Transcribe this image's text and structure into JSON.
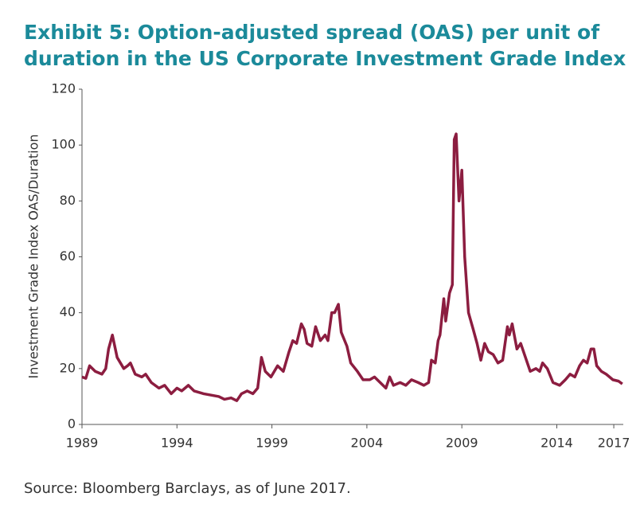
{
  "chart_data": {
    "type": "line",
    "title": [
      "Exhibit 5: Option-adjusted spread (OAS) per unit of",
      "duration in the US Corporate Investment Grade Index"
    ],
    "ylabel": "Investment Grade Index OAS/Duration",
    "source": "Source: Bloomberg Barclays, as of June 2017.",
    "xlim": [
      1989,
      2017.5
    ],
    "xticks": [
      1989,
      1994,
      1999,
      2004,
      2009,
      2014,
      2017
    ],
    "ylim": [
      0,
      120
    ],
    "yticks": [
      0,
      20,
      40,
      60,
      80,
      100,
      120
    ],
    "grid": false,
    "series": [
      {
        "name": "OAS/Duration",
        "color": "#8c1d40",
        "x": [
          1989.0,
          1989.2,
          1989.4,
          1989.7,
          1990.05,
          1990.25,
          1990.4,
          1990.6,
          1990.85,
          1991.2,
          1991.4,
          1991.55,
          1991.8,
          1992.15,
          1992.35,
          1992.65,
          1993.05,
          1993.35,
          1993.7,
          1994.0,
          1994.25,
          1994.6,
          1994.9,
          1995.4,
          1995.8,
          1996.2,
          1996.5,
          1996.85,
          1997.15,
          1997.4,
          1997.7,
          1998.0,
          1998.25,
          1998.45,
          1998.65,
          1998.95,
          1999.3,
          1999.6,
          1999.9,
          2000.1,
          2000.3,
          2000.55,
          2000.7,
          2000.85,
          2001.1,
          2001.3,
          2001.55,
          2001.8,
          2001.95,
          2002.15,
          2002.3,
          2002.5,
          2002.65,
          2002.95,
          2003.15,
          2003.5,
          2003.8,
          2004.15,
          2004.4,
          2004.7,
          2005.0,
          2005.2,
          2005.4,
          2005.75,
          2006.05,
          2006.35,
          2006.7,
          2007.0,
          2007.25,
          2007.4,
          2007.6,
          2007.75,
          2007.85,
          2008.05,
          2008.15,
          2008.35,
          2008.5,
          2008.6,
          2008.7,
          2008.85,
          2009.0,
          2009.15,
          2009.35,
          2009.6,
          2009.8,
          2010.0,
          2010.2,
          2010.4,
          2010.65,
          2010.9,
          2011.15,
          2011.4,
          2011.5,
          2011.65,
          2011.9,
          2012.1,
          2012.35,
          2012.6,
          2012.9,
          2013.1,
          2013.25,
          2013.5,
          2013.8,
          2014.15,
          2014.45,
          2014.7,
          2014.95,
          2015.2,
          2015.4,
          2015.6,
          2015.8,
          2015.95,
          2016.1,
          2016.35,
          2016.6,
          2016.95,
          2017.25,
          2017.45
        ],
        "values": [
          17,
          16.5,
          21,
          19,
          18,
          20,
          27,
          32,
          24,
          20,
          21,
          22,
          18,
          17,
          18,
          15,
          13,
          14,
          11,
          13,
          12,
          14,
          12,
          11,
          10.5,
          10,
          9,
          9.5,
          8.5,
          11,
          12,
          11,
          13,
          24,
          19,
          17,
          21,
          19,
          26,
          30,
          29,
          36,
          34,
          29,
          28,
          35,
          30,
          32,
          30,
          40,
          40,
          43,
          33,
          28,
          22,
          19,
          16,
          16,
          17,
          15,
          13,
          17,
          14,
          15,
          14,
          16,
          15,
          14,
          15,
          23,
          22,
          30,
          32,
          45,
          37,
          47,
          50,
          102,
          104,
          80,
          91,
          60,
          40,
          34,
          29,
          23,
          29,
          26,
          25,
          22,
          23,
          35,
          32,
          36,
          27,
          29,
          24,
          19,
          20,
          19,
          22,
          20,
          15,
          14,
          16,
          18,
          17,
          21,
          23,
          22,
          27,
          27,
          21,
          19,
          18,
          16,
          15.5,
          14.5
        ]
      }
    ]
  }
}
